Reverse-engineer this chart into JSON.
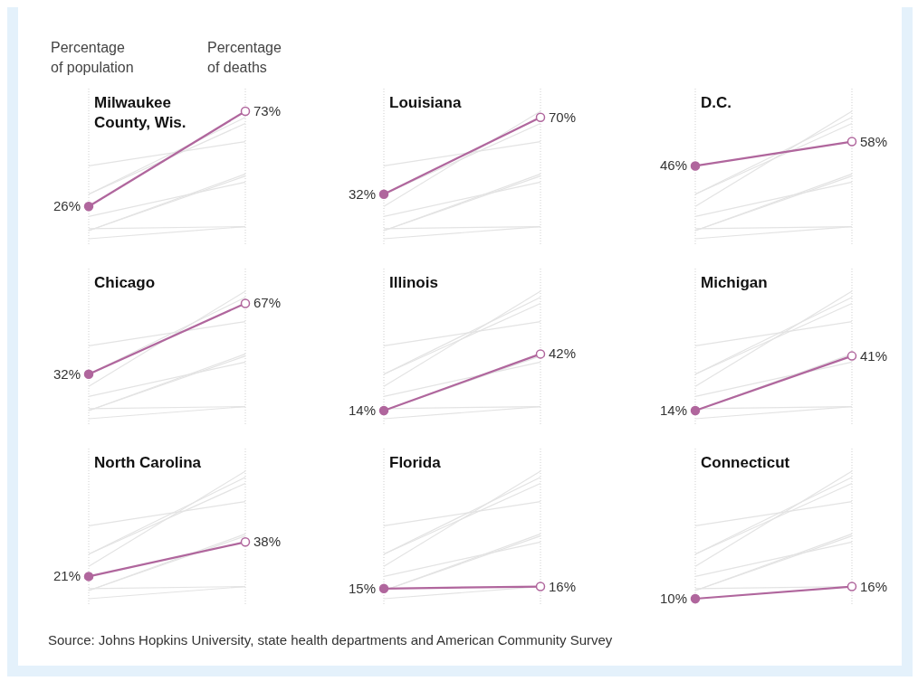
{
  "chart_data": [
    {
      "type": "line",
      "title": "Milwaukee County, Wis.",
      "categories": [
        "Percentage of population",
        "Percentage of deaths"
      ],
      "grid": "x",
      "series": [
        {
          "color": "#e3e3e3",
          "values": [
            32,
            70
          ]
        },
        {
          "color": "#e3e3e3",
          "values": [
            46,
            58
          ]
        },
        {
          "color": "#e3e3e3",
          "values": [
            32,
            67
          ]
        },
        {
          "color": "#e3e3e3",
          "values": [
            14,
            42
          ]
        },
        {
          "color": "#e3e3e3",
          "values": [
            14,
            41
          ]
        },
        {
          "color": "#e3e3e3",
          "values": [
            21,
            38
          ]
        },
        {
          "color": "#e3e3e3",
          "values": [
            15,
            16
          ]
        },
        {
          "color": "#e3e3e3",
          "values": [
            10,
            16
          ]
        },
        {
          "color": "#b0669d",
          "values": [
            26,
            73
          ],
          "value_labels": [
            "26%",
            "73%"
          ],
          "marker": "circle"
        }
      ]
    },
    {
      "type": "line",
      "title": "Louisiana",
      "categories": [
        null,
        null
      ],
      "grid": "x",
      "series": [
        {
          "color": "#e3e3e3",
          "values": [
            26,
            73
          ]
        },
        {
          "color": "#e3e3e3",
          "values": [
            46,
            58
          ]
        },
        {
          "color": "#e3e3e3",
          "values": [
            32,
            67
          ]
        },
        {
          "color": "#e3e3e3",
          "values": [
            14,
            42
          ]
        },
        {
          "color": "#e3e3e3",
          "values": [
            14,
            41
          ]
        },
        {
          "color": "#e3e3e3",
          "values": [
            21,
            38
          ]
        },
        {
          "color": "#e3e3e3",
          "values": [
            15,
            16
          ]
        },
        {
          "color": "#e3e3e3",
          "values": [
            10,
            16
          ]
        },
        {
          "color": "#b0669d",
          "values": [
            32,
            70
          ],
          "value_labels": [
            "32%",
            "70%"
          ],
          "marker": "circle"
        }
      ]
    },
    {
      "type": "line",
      "title": "D.C.",
      "categories": [
        null,
        null
      ],
      "grid": "x",
      "series": [
        {
          "color": "#e3e3e3",
          "values": [
            26,
            73
          ]
        },
        {
          "color": "#e3e3e3",
          "values": [
            32,
            70
          ]
        },
        {
          "color": "#e3e3e3",
          "values": [
            32,
            67
          ]
        },
        {
          "color": "#e3e3e3",
          "values": [
            14,
            42
          ]
        },
        {
          "color": "#e3e3e3",
          "values": [
            14,
            41
          ]
        },
        {
          "color": "#e3e3e3",
          "values": [
            21,
            38
          ]
        },
        {
          "color": "#e3e3e3",
          "values": [
            15,
            16
          ]
        },
        {
          "color": "#e3e3e3",
          "values": [
            10,
            16
          ]
        },
        {
          "color": "#b0669d",
          "values": [
            46,
            58
          ],
          "value_labels": [
            "46%",
            "58%"
          ],
          "marker": "circle"
        }
      ]
    },
    {
      "type": "line",
      "title": "Chicago",
      "categories": [
        null,
        null
      ],
      "grid": "x",
      "series": [
        {
          "color": "#e3e3e3",
          "values": [
            26,
            73
          ]
        },
        {
          "color": "#e3e3e3",
          "values": [
            32,
            70
          ]
        },
        {
          "color": "#e3e3e3",
          "values": [
            46,
            58
          ]
        },
        {
          "color": "#e3e3e3",
          "values": [
            14,
            42
          ]
        },
        {
          "color": "#e3e3e3",
          "values": [
            14,
            41
          ]
        },
        {
          "color": "#e3e3e3",
          "values": [
            21,
            38
          ]
        },
        {
          "color": "#e3e3e3",
          "values": [
            15,
            16
          ]
        },
        {
          "color": "#e3e3e3",
          "values": [
            10,
            16
          ]
        },
        {
          "color": "#b0669d",
          "values": [
            32,
            67
          ],
          "value_labels": [
            "32%",
            "67%"
          ],
          "marker": "circle"
        }
      ]
    },
    {
      "type": "line",
      "title": "Illinois",
      "categories": [
        null,
        null
      ],
      "grid": "x",
      "series": [
        {
          "color": "#e3e3e3",
          "values": [
            26,
            73
          ]
        },
        {
          "color": "#e3e3e3",
          "values": [
            32,
            70
          ]
        },
        {
          "color": "#e3e3e3",
          "values": [
            46,
            58
          ]
        },
        {
          "color": "#e3e3e3",
          "values": [
            32,
            67
          ]
        },
        {
          "color": "#e3e3e3",
          "values": [
            14,
            41
          ]
        },
        {
          "color": "#e3e3e3",
          "values": [
            21,
            38
          ]
        },
        {
          "color": "#e3e3e3",
          "values": [
            15,
            16
          ]
        },
        {
          "color": "#e3e3e3",
          "values": [
            10,
            16
          ]
        },
        {
          "color": "#b0669d",
          "values": [
            14,
            42
          ],
          "value_labels": [
            "14%",
            "42%"
          ],
          "marker": "circle"
        }
      ]
    },
    {
      "type": "line",
      "title": "Michigan",
      "categories": [
        null,
        null
      ],
      "grid": "x",
      "series": [
        {
          "color": "#e3e3e3",
          "values": [
            26,
            73
          ]
        },
        {
          "color": "#e3e3e3",
          "values": [
            32,
            70
          ]
        },
        {
          "color": "#e3e3e3",
          "values": [
            46,
            58
          ]
        },
        {
          "color": "#e3e3e3",
          "values": [
            32,
            67
          ]
        },
        {
          "color": "#e3e3e3",
          "values": [
            14,
            42
          ]
        },
        {
          "color": "#e3e3e3",
          "values": [
            21,
            38
          ]
        },
        {
          "color": "#e3e3e3",
          "values": [
            15,
            16
          ]
        },
        {
          "color": "#e3e3e3",
          "values": [
            10,
            16
          ]
        },
        {
          "color": "#b0669d",
          "values": [
            14,
            41
          ],
          "value_labels": [
            "14%",
            "41%"
          ],
          "marker": "circle"
        }
      ]
    },
    {
      "type": "line",
      "title": "North Carolina",
      "categories": [
        null,
        null
      ],
      "grid": "x",
      "series": [
        {
          "color": "#e3e3e3",
          "values": [
            26,
            73
          ]
        },
        {
          "color": "#e3e3e3",
          "values": [
            32,
            70
          ]
        },
        {
          "color": "#e3e3e3",
          "values": [
            46,
            58
          ]
        },
        {
          "color": "#e3e3e3",
          "values": [
            32,
            67
          ]
        },
        {
          "color": "#e3e3e3",
          "values": [
            14,
            42
          ]
        },
        {
          "color": "#e3e3e3",
          "values": [
            14,
            41
          ]
        },
        {
          "color": "#e3e3e3",
          "values": [
            15,
            16
          ]
        },
        {
          "color": "#e3e3e3",
          "values": [
            10,
            16
          ]
        },
        {
          "color": "#b0669d",
          "values": [
            21,
            38
          ],
          "value_labels": [
            "21%",
            "38%"
          ],
          "marker": "circle"
        }
      ]
    },
    {
      "type": "line",
      "title": "Florida",
      "categories": [
        null,
        null
      ],
      "grid": "x",
      "series": [
        {
          "color": "#e3e3e3",
          "values": [
            26,
            73
          ]
        },
        {
          "color": "#e3e3e3",
          "values": [
            32,
            70
          ]
        },
        {
          "color": "#e3e3e3",
          "values": [
            46,
            58
          ]
        },
        {
          "color": "#e3e3e3",
          "values": [
            32,
            67
          ]
        },
        {
          "color": "#e3e3e3",
          "values": [
            14,
            42
          ]
        },
        {
          "color": "#e3e3e3",
          "values": [
            14,
            41
          ]
        },
        {
          "color": "#e3e3e3",
          "values": [
            21,
            38
          ]
        },
        {
          "color": "#e3e3e3",
          "values": [
            10,
            16
          ]
        },
        {
          "color": "#b0669d",
          "values": [
            15,
            16
          ],
          "value_labels": [
            "15%",
            "16%"
          ],
          "marker": "circle"
        }
      ]
    },
    {
      "type": "line",
      "title": "Connecticut",
      "categories": [
        null,
        null
      ],
      "grid": "x",
      "series": [
        {
          "color": "#e3e3e3",
          "values": [
            26,
            73
          ]
        },
        {
          "color": "#e3e3e3",
          "values": [
            32,
            70
          ]
        },
        {
          "color": "#e3e3e3",
          "values": [
            46,
            58
          ]
        },
        {
          "color": "#e3e3e3",
          "values": [
            32,
            67
          ]
        },
        {
          "color": "#e3e3e3",
          "values": [
            14,
            42
          ]
        },
        {
          "color": "#e3e3e3",
          "values": [
            14,
            41
          ]
        },
        {
          "color": "#e3e3e3",
          "values": [
            21,
            38
          ]
        },
        {
          "color": "#e3e3e3",
          "values": [
            15,
            16
          ]
        },
        {
          "color": "#b0669d",
          "values": [
            10,
            16
          ],
          "value_labels": [
            "10%",
            "16%"
          ],
          "marker": "circle"
        }
      ],
      "annotations": [
        "Source: Johns Hopkins University, state health departments and American Community Survey"
      ]
    }
  ]
}
